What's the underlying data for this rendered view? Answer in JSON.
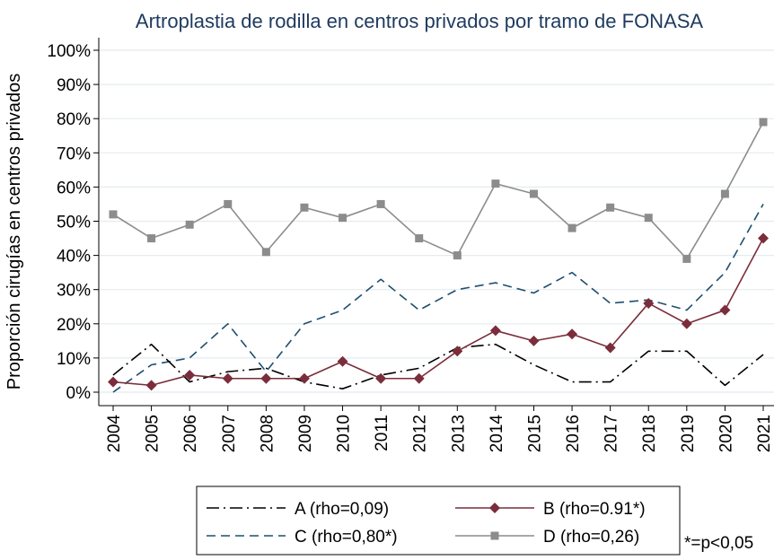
{
  "chart_data": {
    "type": "line",
    "title": "Artroplastia de rodilla en centros privados por tramo de FONASA",
    "ylabel": "Proporción cirugías en centros privados",
    "xlabel": "",
    "ylim": [
      0,
      100
    ],
    "yticks": [
      "0%",
      "10%",
      "20%",
      "30%",
      "40%",
      "50%",
      "60%",
      "70%",
      "80%",
      "90%",
      "100%"
    ],
    "x": [
      "2004",
      "2005",
      "2006",
      "2007",
      "2008",
      "2009",
      "2010",
      "2011",
      "2012",
      "2013",
      "2014",
      "2015",
      "2016",
      "2017",
      "2018",
      "2019",
      "2020",
      "2021"
    ],
    "series": [
      {
        "name": "A (rho=0,09)",
        "style": "dash-dot",
        "color": "#000000",
        "values": [
          5,
          14,
          3,
          6,
          7,
          3,
          1,
          5,
          7,
          13,
          14,
          8,
          3,
          3,
          12,
          12,
          2,
          11
        ]
      },
      {
        "name": "B (rho=0.91*)",
        "style": "solid-diamond",
        "color": "#7b2d3b",
        "values": [
          3,
          2,
          5,
          4,
          4,
          4,
          9,
          4,
          4,
          12,
          18,
          15,
          17,
          13,
          26,
          20,
          24,
          45
        ]
      },
      {
        "name": "C (rho=0,80*)",
        "style": "dashed",
        "color": "#1f4e6e",
        "values": [
          0,
          8,
          10,
          20,
          6,
          20,
          24,
          33,
          24,
          30,
          32,
          29,
          35,
          26,
          27,
          24,
          35,
          55
        ]
      },
      {
        "name": "D (rho=0,26)",
        "style": "solid-square",
        "color": "#8c8c8c",
        "values": [
          52,
          45,
          49,
          55,
          41,
          54,
          51,
          55,
          45,
          40,
          61,
          58,
          48,
          54,
          51,
          39,
          58,
          79
        ]
      }
    ],
    "grid": true,
    "legend": "bottom",
    "note": "*=p<0,05"
  }
}
